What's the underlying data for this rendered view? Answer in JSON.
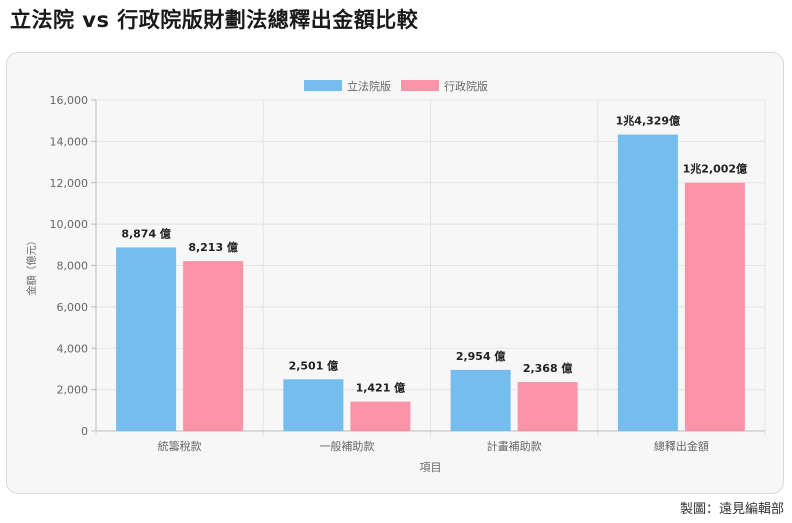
{
  "page": {
    "title": "立法院 vs 行政院版財劃法總釋出金額比較",
    "credit": "製圖：遠見編輯部"
  },
  "colors": {
    "series_1": "#74bdec",
    "series_2": "#fb93a9",
    "grid": "#e3e3e3",
    "axis": "#bdbdbd"
  },
  "chart_data": {
    "type": "bar",
    "categories": [
      "統籌稅款",
      "一般補助款",
      "計畫補助款",
      "總釋出金額"
    ],
    "series": [
      {
        "name": "立法院版",
        "values": [
          8874,
          2501,
          2954,
          14329
        ],
        "data_labels": [
          "8,874 億",
          "2,501 億",
          "2,954 億",
          "1兆4,329億"
        ]
      },
      {
        "name": "行政院版",
        "values": [
          8213,
          1421,
          2368,
          12002
        ],
        "data_labels": [
          "8,213 億",
          "1,421 億",
          "2,368 億",
          "1兆2,002億"
        ]
      }
    ],
    "xlabel": "項目",
    "ylabel": "金額（億元）",
    "ylim": [
      0,
      16000
    ],
    "yticks": [
      0,
      2000,
      4000,
      6000,
      8000,
      10000,
      12000,
      14000,
      16000
    ],
    "ytick_labels": [
      "0",
      "2,000",
      "4,000",
      "6,000",
      "8,000",
      "10,000",
      "12,000",
      "14,000",
      "16,000"
    ],
    "grid": true,
    "legend_position": "top-center"
  }
}
